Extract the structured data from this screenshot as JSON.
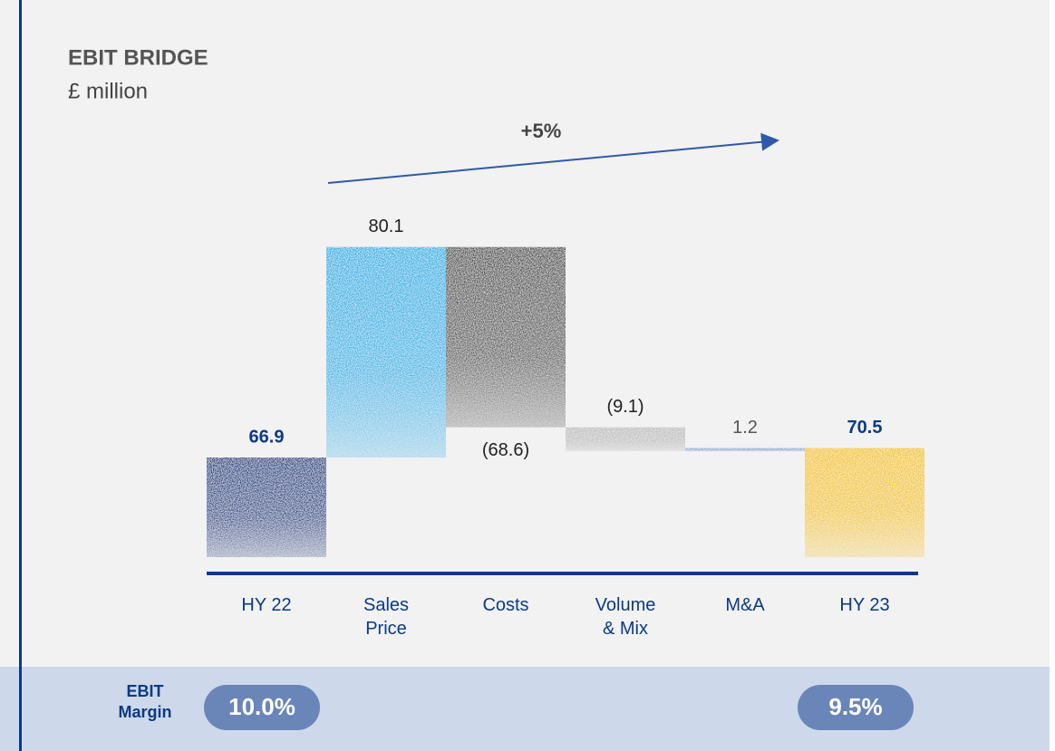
{
  "chart_data": {
    "type": "waterfall",
    "title": "EBIT BRIDGE",
    "subtitle": "£ million",
    "categories": [
      "HY 22",
      "Sales Price",
      "Costs",
      "Volume & Mix",
      "M&A",
      "HY 23"
    ],
    "values": [
      66.9,
      80.1,
      -68.6,
      -9.1,
      1.2,
      70.5
    ],
    "value_labels": [
      "66.9",
      "80.1",
      "(68.6)",
      "(9.1)",
      "1.2",
      "70.5"
    ],
    "measure": [
      "absolute",
      "relative",
      "relative",
      "relative",
      "relative",
      "absolute"
    ],
    "colors": [
      "#0b3a85",
      "#19b2e6",
      "#4a4a4a",
      "#bdbdbd",
      "#8ea3cc",
      "#f2c500"
    ],
    "ylim": [
      29,
      160
    ],
    "annotation": "+5%",
    "footer_label": "EBIT Margin",
    "footer_values": [
      "10.0%",
      "9.5%"
    ]
  }
}
